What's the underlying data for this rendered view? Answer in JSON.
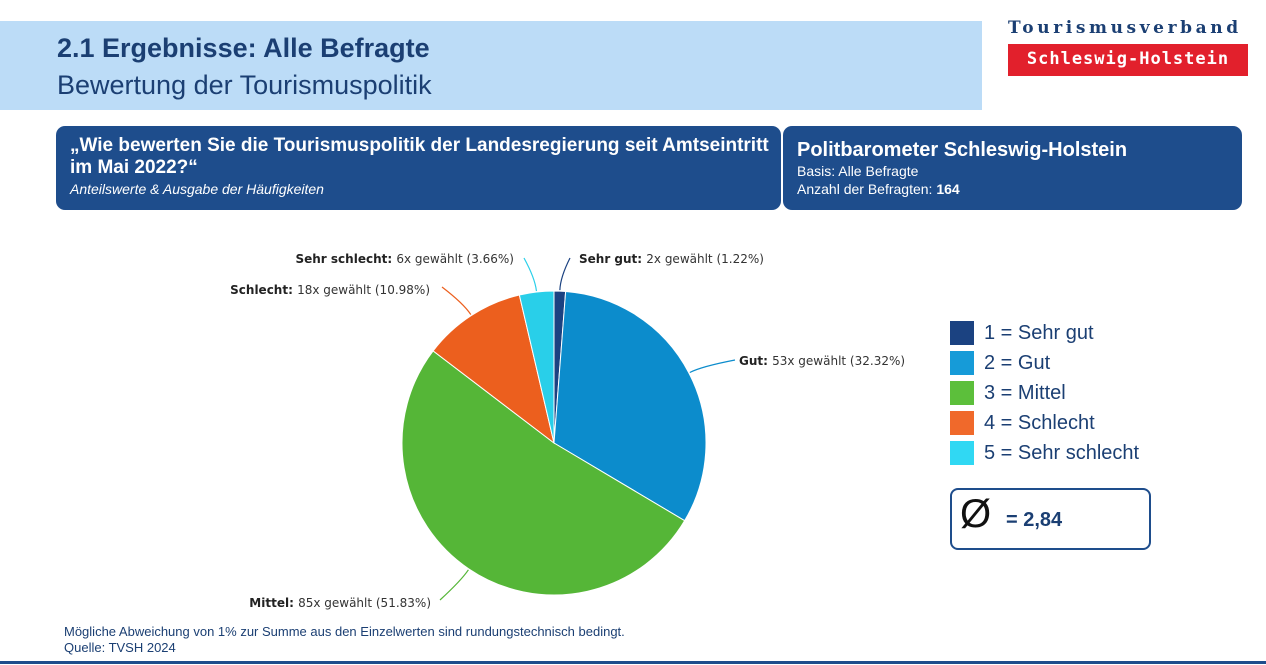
{
  "header": {
    "title": "2.1 Ergebnisse: Alle Befragte",
    "subtitle": "Bewertung der Tourismuspolitik"
  },
  "logo": {
    "line1": "Tourismusverband",
    "line2": "Schleswig-Holstein"
  },
  "question": {
    "text": "„Wie bewerten Sie die Tourismuspolitik der Landesregierung seit Amtseintritt im Mai 2022?“",
    "note": "Anteilswerte & Ausgabe der Häufigkeiten"
  },
  "info": {
    "title": "Politbarometer Schleswig-Holstein",
    "basis": "Basis: Alle Befragte",
    "count_label": "Anzahl der Befragten:",
    "count_value": "164"
  },
  "chart_data": {
    "type": "pie",
    "title": "„Wie bewerten Sie die Tourismuspolitik der Landesregierung seit Amtseintritt im Mai 2022?“",
    "total": 164,
    "slices": [
      {
        "name": "Sehr gut",
        "count": 2,
        "percent": 1.22,
        "label_bold": "Sehr gut:",
        "label_rest": "2x gewählt (1.22%)",
        "color": "#1b4281",
        "legend": "1 = Sehr gut"
      },
      {
        "name": "Gut",
        "count": 53,
        "percent": 32.32,
        "label_bold": "Gut:",
        "label_rest": "53x gewählt (32.32%)",
        "color": "#0c8ccc",
        "legend": "2 = Gut"
      },
      {
        "name": "Mittel",
        "count": 85,
        "percent": 51.83,
        "label_bold": "Mittel:",
        "label_rest": "85x gewählt (51.83%)",
        "color": "#55b637",
        "legend": "3 = Mittel"
      },
      {
        "name": "Schlecht",
        "count": 18,
        "percent": 10.98,
        "label_bold": "Schlecht:",
        "label_rest": "18x gewählt (10.98%)",
        "color": "#ec5f1e",
        "legend": "4 = Schlecht"
      },
      {
        "name": "Sehr schlecht",
        "count": 6,
        "percent": 3.66,
        "label_bold": "Sehr schlecht:",
        "label_rest": "6x gewählt (3.66%)",
        "color": "#29cfe9",
        "legend": "5 = Sehr schlecht"
      }
    ],
    "legend_colors": [
      "#1b4281",
      "#169bd8",
      "#5cbf3b",
      "#f0692b",
      "#30d8f3"
    ],
    "average_symbol": "Ø",
    "average_label": "= 2,84",
    "average_value": 2.84
  },
  "footer": {
    "note": "Mögliche Abweichung von 1% zur Summe aus den Einzelwerten sind rundungstechnisch bedingt.",
    "source": "Quelle: TVSH 2024"
  }
}
